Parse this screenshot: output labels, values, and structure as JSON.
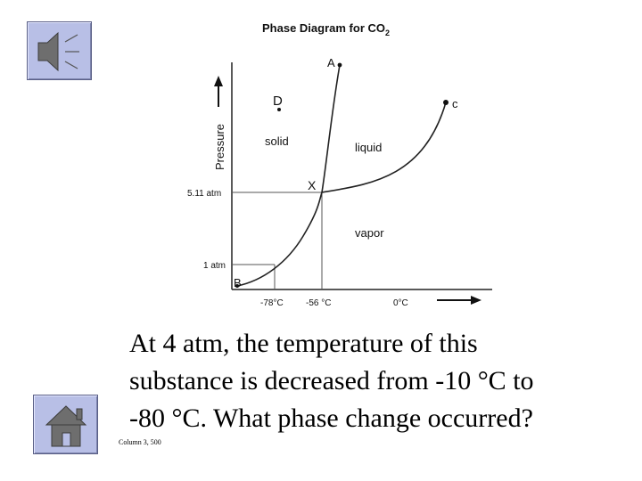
{
  "diagram": {
    "title": "Phase Diagram for CO",
    "title_subscript": "2",
    "y_axis_label": "Pressure",
    "pressure_ticks": [
      "5.11 atm",
      "1 atm"
    ],
    "temperature_ticks": [
      "-78°C",
      "-56 °C",
      "0°C"
    ],
    "point_labels": {
      "A": "A",
      "B": "B",
      "C": "c",
      "D": "D",
      "X": "X"
    },
    "region_labels": {
      "solid": "solid",
      "liquid": "liquid",
      "vapor": "vapor"
    }
  },
  "question": {
    "line1": "At 4 atm, the temperature of this",
    "line2": "substance is decreased from -10 °C to",
    "line3": "-80 °C. What phase change occurred?"
  },
  "slide_id": "Column 3, 500",
  "icons": {
    "sound": "speaker-icon",
    "home": "house-icon"
  },
  "colors": {
    "button_fill": "#b8bfe6",
    "button_border": "#5a5f86",
    "icon_fill": "#6e6e6e"
  }
}
